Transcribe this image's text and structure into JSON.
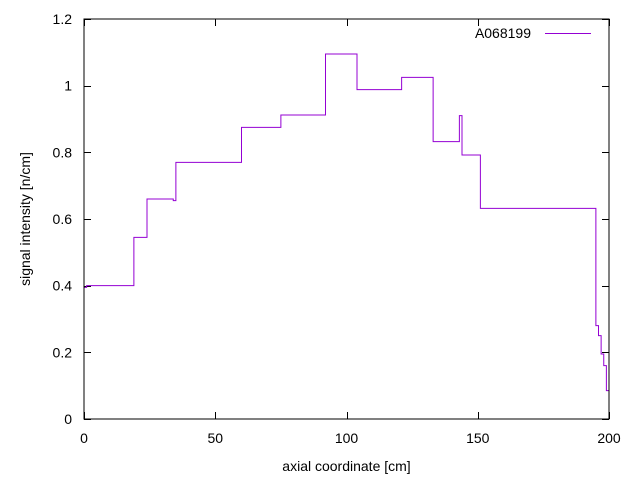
{
  "chart_data": {
    "type": "line",
    "line_shape": "step",
    "title": "",
    "xlabel": "axial coordinate [cm]",
    "ylabel": "signal intensity [n/cm]",
    "xlim": [
      0,
      200
    ],
    "ylim": [
      0,
      1.2
    ],
    "xticks": [
      0,
      50,
      100,
      150,
      200
    ],
    "yticks": [
      0,
      0.2,
      0.4,
      0.6,
      0.8,
      1,
      1.2
    ],
    "xtick_labels": [
      "0",
      "50",
      "100",
      "150",
      "200"
    ],
    "ytick_labels": [
      "0",
      "0.2",
      "0.4",
      "0.6",
      "0.8",
      "1",
      "1.2"
    ],
    "grid": false,
    "legend_position": "top-right",
    "colors": {
      "series": "#9400d3",
      "axes": "#000000",
      "background": "#ffffff"
    },
    "series": [
      {
        "name": "A068199",
        "x": [
          0,
          1,
          19,
          24,
          34,
          35,
          60,
          75,
          92,
          104,
          121,
          133,
          143,
          144,
          151,
          195,
          196,
          197,
          198,
          199,
          200
        ],
        "y": [
          0.395,
          0.4,
          0.545,
          0.66,
          0.655,
          0.77,
          0.875,
          0.912,
          1.095,
          0.988,
          1.025,
          0.832,
          0.91,
          0.792,
          0.632,
          0.28,
          0.25,
          0.195,
          0.16,
          0.085,
          0.198
        ]
      }
    ]
  }
}
